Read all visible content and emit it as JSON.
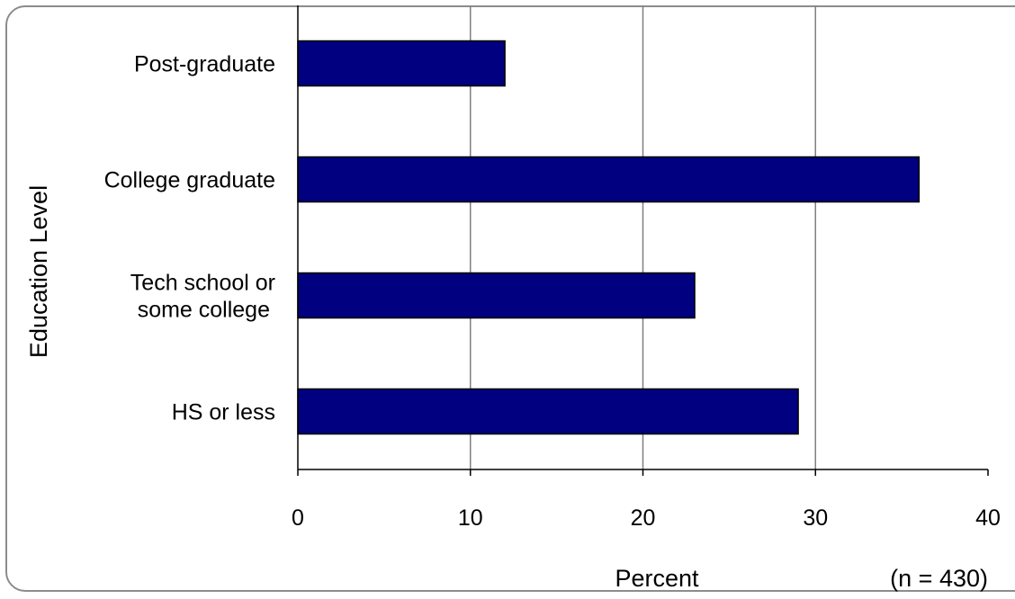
{
  "chart_data": {
    "type": "bar",
    "orientation": "horizontal",
    "categories": [
      "Post-graduate",
      "College graduate",
      "Tech school or some college",
      "HS or less"
    ],
    "category_lines": [
      [
        "Post-graduate"
      ],
      [
        "College graduate"
      ],
      [
        "Tech school or",
        "some college"
      ],
      [
        "HS or less"
      ]
    ],
    "values": [
      12,
      36,
      23,
      29
    ],
    "xlabel": "Percent",
    "ylabel": "Education Level",
    "note": "(n = 430)",
    "xlim": [
      0,
      40
    ],
    "xticks": [
      0,
      10,
      20,
      30,
      40
    ],
    "grid": true,
    "colors": {
      "bar": "#000080",
      "bar_border": "#000000",
      "grid": "#808080",
      "frame": "#8c8c8c"
    }
  }
}
